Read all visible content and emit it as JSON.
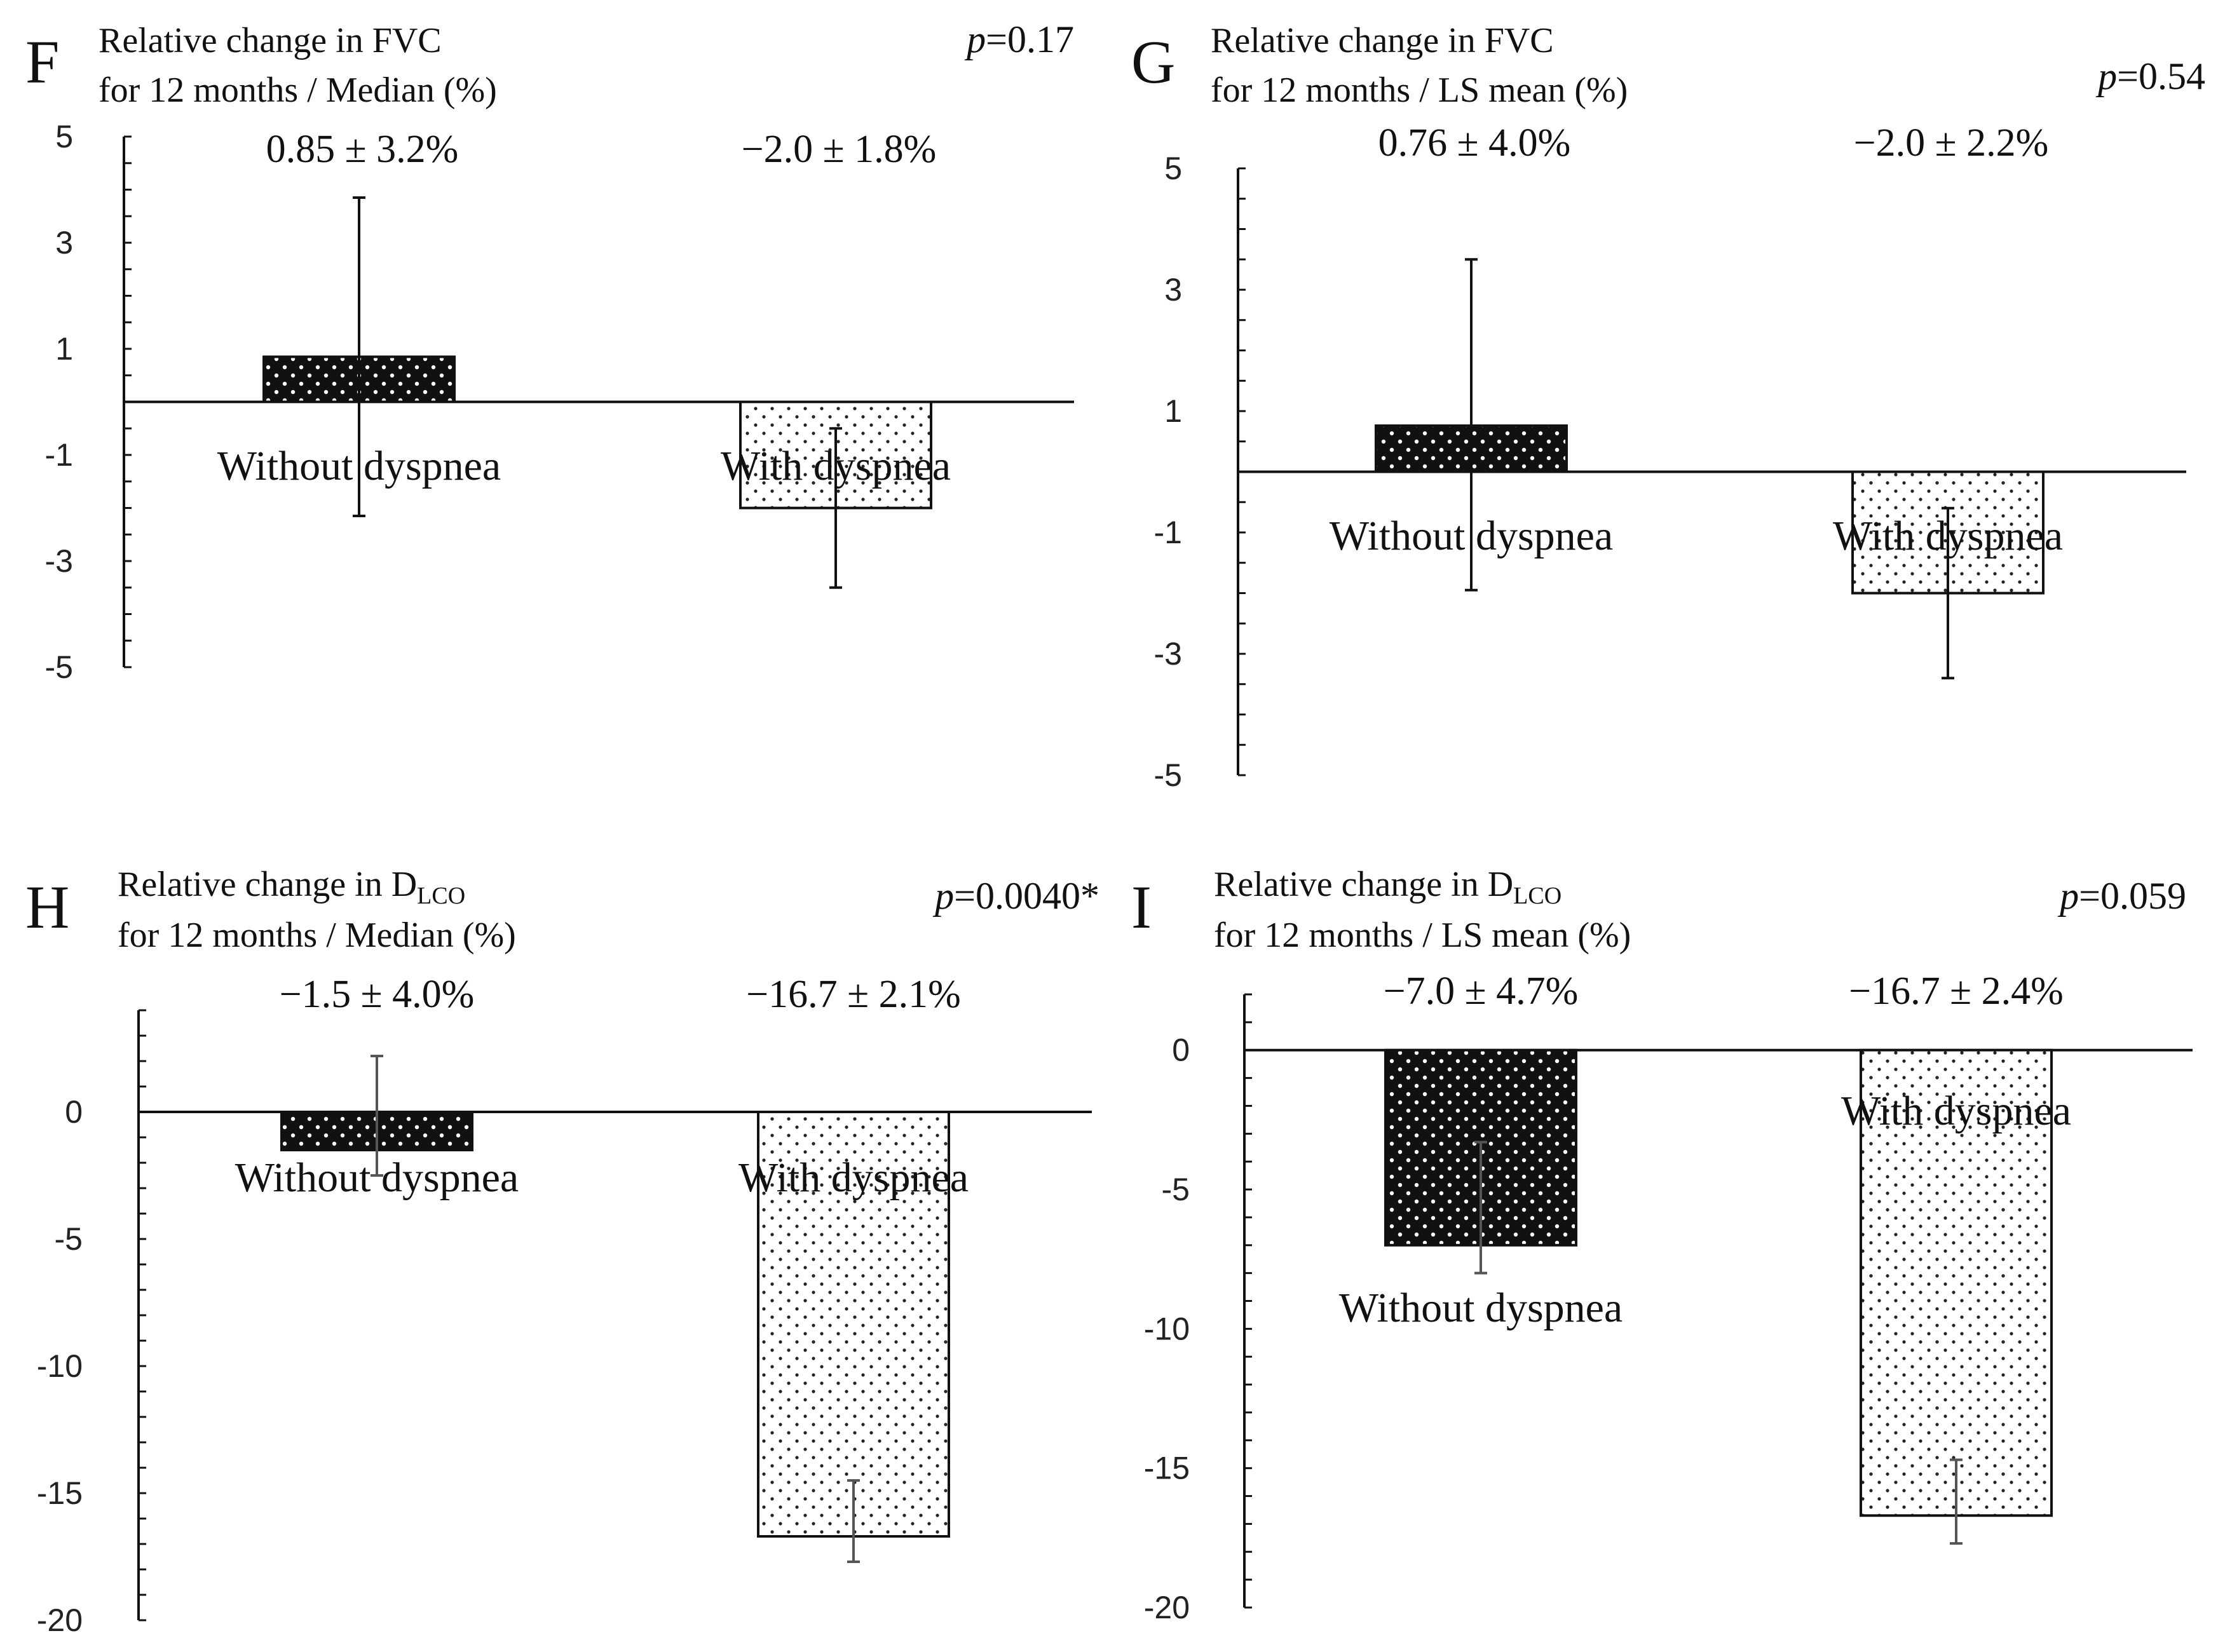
{
  "chart_data": [
    {
      "panel": "F",
      "type": "bar",
      "title_line1": "Relative change in FVC",
      "title_line2": "for 12 months  / Median (%)",
      "p_value": "=0.17",
      "categories": [
        "Without dyspnea",
        "With dyspnea"
      ],
      "values": [
        0.85,
        -2.0
      ],
      "error_low": [
        -2.15,
        -3.5
      ],
      "error_high": [
        3.85,
        -0.5
      ],
      "value_labels": [
        "0.85 ± 3.2%",
        "−2.0 ± 1.8%"
      ],
      "yticks": [
        "5",
        "3",
        "1",
        "-1",
        "-3",
        "-5"
      ],
      "ylim": [
        -5,
        5
      ],
      "fills": [
        "dark-dotted",
        "light-dotted"
      ]
    },
    {
      "panel": "G",
      "type": "bar",
      "title_line1": "Relative change in FVC",
      "title_line2": "for 12 months / LS mean (%)",
      "p_value": "=0.54",
      "categories": [
        "Without dyspnea",
        "With dyspnea"
      ],
      "values": [
        0.76,
        -2.0
      ],
      "error_low": [
        -1.95,
        -3.4
      ],
      "error_high": [
        3.5,
        -0.6
      ],
      "value_labels": [
        "0.76 ± 4.0%",
        "−2.0 ± 2.2%"
      ],
      "yticks": [
        "5",
        "3",
        "1",
        "-1",
        "-3",
        "-5"
      ],
      "ylim": [
        -5,
        5
      ],
      "fills": [
        "dark-dotted",
        "light-dotted"
      ]
    },
    {
      "panel": "H",
      "type": "bar",
      "title_main": "Relative change in D",
      "title_sub": "LCO",
      "title_line2": "for 12 months / Median (%)",
      "p_value": "=0.0040*",
      "categories": [
        "Without dyspnea",
        "With dyspnea"
      ],
      "values": [
        -1.5,
        -16.7
      ],
      "error_low": [
        -2.5,
        -17.7
      ],
      "error_high": [
        2.2,
        -14.5
      ],
      "value_labels": [
        "−1.5 ± 4.0%",
        "−16.7 ± 2.1%"
      ],
      "yticks": [
        "0",
        "-5",
        "-10",
        "-15",
        "-20"
      ],
      "ylim": [
        -20,
        4
      ],
      "fills": [
        "dark-dotted",
        "light-dotted"
      ]
    },
    {
      "panel": "I",
      "type": "bar",
      "title_main": "Relative change in D",
      "title_sub": "LCO",
      "title_line2": "for 12 months / LS mean (%)",
      "p_value": "=0.059",
      "categories": [
        "Without dyspnea",
        "With dyspnea"
      ],
      "values": [
        -7.0,
        -16.7
      ],
      "error_low": [
        -8.0,
        -17.7
      ],
      "error_high": [
        -3.3,
        -14.7
      ],
      "value_labels": [
        "−7.0 ± 4.7%",
        "−16.7 ± 2.4%"
      ],
      "yticks": [
        "0",
        "-5",
        "-10",
        "-15",
        "-20"
      ],
      "ylim": [
        -20,
        2
      ],
      "fills": [
        "dark-dotted",
        "light-dotted"
      ]
    }
  ],
  "p_symbol": "p",
  "colors": {
    "dark_fill": "#111111",
    "light_fill": "#ffffff",
    "axis": "#111111"
  }
}
